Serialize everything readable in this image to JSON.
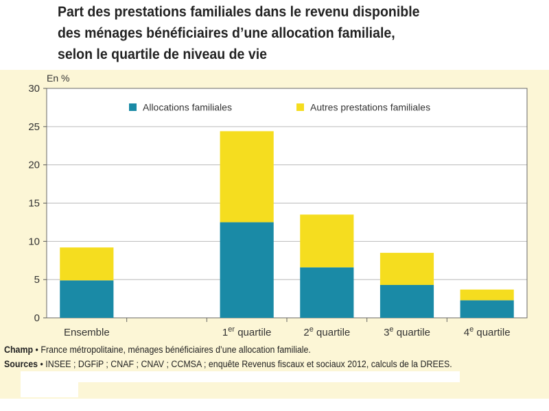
{
  "title_lines": [
    "Part des prestations familiales dans le revenu disponible",
    "des ménages bénéficiaires d’une allocation familiale,",
    "selon le quartile de niveau de vie"
  ],
  "notes": {
    "champ_label": "Champ",
    "champ_text": " • France métropolitaine, ménages bénéficiaires d’une allocation familiale.",
    "sources_label": "Sources",
    "sources_text": " • INSEE ; DGFiP ; CNAF ; CNAV ; CCMSA ; enquête Revenus fiscaux et sociaux 2012, calculs de la DREES."
  },
  "colors": {
    "allocations": "#1a8aa6",
    "autres": "#f5dd1f",
    "panel": "#fcf6d6",
    "grid": "#b9b9b9"
  },
  "chart_data": {
    "type": "bar",
    "stacked": true,
    "ylabel": "En %",
    "ylim": [
      0,
      30
    ],
    "yticks": [
      0,
      5,
      10,
      15,
      20,
      25,
      30
    ],
    "grid": true,
    "legend_position": "top",
    "categories": [
      {
        "main": "Ensemble",
        "sup": "",
        "rest": ""
      },
      {
        "main": "",
        "sup": "",
        "rest": ""
      },
      {
        "main": "1",
        "sup": "er",
        "rest": " quartile"
      },
      {
        "main": "2",
        "sup": "e",
        "rest": " quartile"
      },
      {
        "main": "3",
        "sup": "e",
        "rest": " quartile"
      },
      {
        "main": "4",
        "sup": "e",
        "rest": " quartile"
      }
    ],
    "series": [
      {
        "name": "Allocations familiales",
        "color": "#1a8aa6",
        "values": [
          4.9,
          null,
          12.5,
          6.6,
          4.3,
          2.3
        ]
      },
      {
        "name": "Autres prestations familiales",
        "color": "#f5dd1f",
        "values": [
          4.3,
          null,
          11.9,
          6.9,
          4.2,
          1.4
        ]
      }
    ]
  }
}
